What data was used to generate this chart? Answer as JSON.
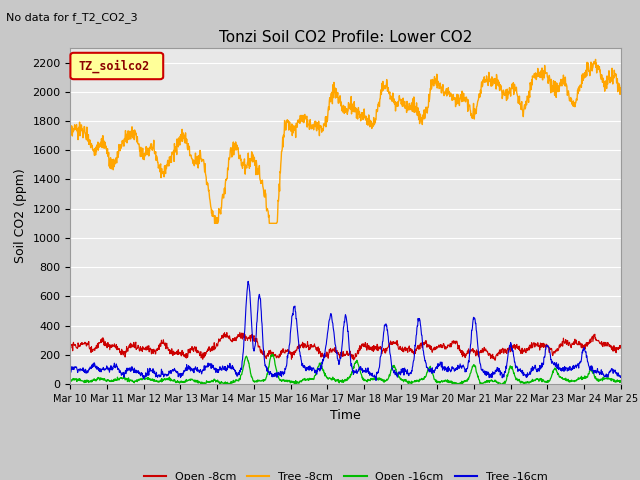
{
  "title": "Tonzi Soil CO2 Profile: Lower CO2",
  "suptitle": "No data for f_T2_CO2_3",
  "ylabel": "Soil CO2 (ppm)",
  "xlabel": "Time",
  "ylim": [
    0,
    2300
  ],
  "yticks": [
    0,
    200,
    400,
    600,
    800,
    1000,
    1200,
    1400,
    1600,
    1800,
    2000,
    2200
  ],
  "xtick_labels": [
    "Mar 10",
    "Mar 11",
    "Mar 12",
    "Mar 13",
    "Mar 14",
    "Mar 15",
    "Mar 16",
    "Mar 17",
    "Mar 18",
    "Mar 19",
    "Mar 20",
    "Mar 21",
    "Mar 22",
    "Mar 23",
    "Mar 24",
    "Mar 25"
  ],
  "legend_label": "TZ_soilco2",
  "legend_text_color": "#8b0000",
  "legend_box_facecolor": "#ffff99",
  "legend_box_edgecolor": "#cc0000",
  "line_colors": {
    "open_8cm": "#cc0000",
    "tree_8cm": "#ffa500",
    "open_16cm": "#00bb00",
    "tree_16cm": "#0000dd"
  },
  "legend_labels": [
    "Open -8cm",
    "Tree -8cm",
    "Open -16cm",
    "Tree -16cm"
  ],
  "fig_facecolor": "#c8c8c8",
  "plot_bg_color": "#e8e8e8",
  "grid_color": "#ffffff",
  "title_fontsize": 11,
  "axis_fontsize": 9,
  "tick_fontsize": 8,
  "legend_fontsize": 8
}
